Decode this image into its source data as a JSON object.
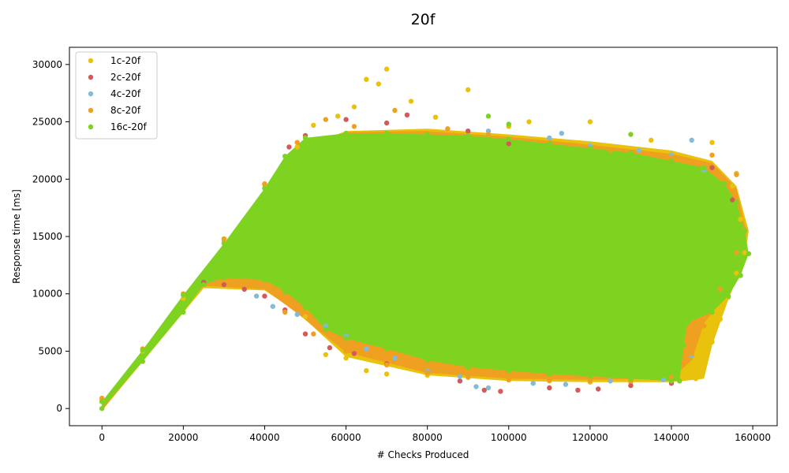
{
  "chart_data": {
    "type": "scatter",
    "title": "20f",
    "xlabel": "# Checks Produced",
    "ylabel": "Response time [ms]",
    "xlim": [
      -8000,
      166000
    ],
    "ylim": [
      -1500,
      31500
    ],
    "xticks": [
      0,
      20000,
      40000,
      60000,
      80000,
      100000,
      120000,
      140000,
      160000
    ],
    "yticks": [
      0,
      5000,
      10000,
      15000,
      20000,
      25000,
      30000
    ],
    "xtick_labels": [
      "0",
      "20000",
      "40000",
      "60000",
      "80000",
      "100000",
      "120000",
      "140000",
      "160000"
    ],
    "ytick_labels": [
      "0",
      "5000",
      "10000",
      "15000",
      "20000",
      "25000",
      "30000"
    ],
    "grid": false,
    "legend_position": "top-left",
    "series": [
      {
        "name": "1c-20f",
        "color": "#e8c20c",
        "points": [
          [
            0,
            700
          ],
          [
            10000,
            5000
          ],
          [
            20000,
            9600
          ],
          [
            30000,
            14600
          ],
          [
            40000,
            19500
          ],
          [
            48000,
            22800
          ],
          [
            52000,
            24700
          ],
          [
            58000,
            25500
          ],
          [
            62000,
            26300
          ],
          [
            65000,
            28700
          ],
          [
            68000,
            28300
          ],
          [
            70000,
            29600
          ],
          [
            76000,
            26800
          ],
          [
            82000,
            25400
          ],
          [
            90000,
            27800
          ],
          [
            100000,
            24600
          ],
          [
            105000,
            25000
          ],
          [
            120000,
            25000
          ],
          [
            135000,
            23400
          ],
          [
            150000,
            23200
          ],
          [
            156000,
            20500
          ],
          [
            50000,
            8000
          ],
          [
            55000,
            4700
          ],
          [
            60000,
            4400
          ],
          [
            65000,
            3300
          ],
          [
            70000,
            3000
          ],
          [
            80000,
            2900
          ],
          [
            90000,
            2700
          ],
          [
            100000,
            2500
          ],
          [
            110000,
            2400
          ],
          [
            120000,
            2300
          ],
          [
            130000,
            2300
          ],
          [
            140000,
            2300
          ],
          [
            146000,
            2600
          ],
          [
            148000,
            4000
          ],
          [
            150000,
            5800
          ],
          [
            152000,
            7800
          ],
          [
            154000,
            9700
          ],
          [
            156000,
            11800
          ],
          [
            158000,
            13600
          ],
          [
            157000,
            16500
          ],
          [
            155000,
            19400
          ]
        ]
      },
      {
        "name": "2c-20f",
        "color": "#d45a5a",
        "points": [
          [
            25000,
            11000
          ],
          [
            30000,
            10800
          ],
          [
            35000,
            10400
          ],
          [
            40000,
            9800
          ],
          [
            45000,
            8600
          ],
          [
            50000,
            6500
          ],
          [
            56000,
            5300
          ],
          [
            62000,
            4800
          ],
          [
            70000,
            3900
          ],
          [
            80000,
            3200
          ],
          [
            88000,
            2400
          ],
          [
            94000,
            1600
          ],
          [
            98000,
            1500
          ],
          [
            110000,
            1800
          ],
          [
            117000,
            1600
          ],
          [
            122000,
            1700
          ],
          [
            130000,
            2000
          ],
          [
            140000,
            2200
          ],
          [
            46000,
            22800
          ],
          [
            50000,
            23800
          ],
          [
            60000,
            25200
          ],
          [
            70000,
            24900
          ],
          [
            75000,
            25600
          ],
          [
            90000,
            24200
          ],
          [
            100000,
            23100
          ],
          [
            120000,
            22800
          ],
          [
            140000,
            21600
          ],
          [
            150000,
            21000
          ],
          [
            155000,
            18200
          ]
        ]
      },
      {
        "name": "4c-20f",
        "color": "#82bcd6",
        "points": [
          [
            38000,
            9800
          ],
          [
            42000,
            8900
          ],
          [
            48000,
            8200
          ],
          [
            55000,
            7200
          ],
          [
            60000,
            6300
          ],
          [
            65000,
            5200
          ],
          [
            72000,
            4400
          ],
          [
            80000,
            3300
          ],
          [
            88000,
            2800
          ],
          [
            92000,
            1900
          ],
          [
            95000,
            1800
          ],
          [
            106000,
            2200
          ],
          [
            114000,
            2100
          ],
          [
            125000,
            2400
          ],
          [
            138000,
            2500
          ],
          [
            145000,
            4600
          ],
          [
            95000,
            24200
          ],
          [
            110000,
            23600
          ],
          [
            113000,
            24000
          ],
          [
            120000,
            22900
          ],
          [
            132000,
            22500
          ],
          [
            140000,
            22100
          ],
          [
            145000,
            23400
          ],
          [
            148000,
            20800
          ]
        ]
      },
      {
        "name": "8c-20f",
        "color": "#f0a020",
        "points": [
          [
            0,
            900
          ],
          [
            10000,
            5200
          ],
          [
            20000,
            10000
          ],
          [
            30000,
            14800
          ],
          [
            40000,
            19600
          ],
          [
            48000,
            23200
          ],
          [
            55000,
            25200
          ],
          [
            62000,
            24600
          ],
          [
            72000,
            26000
          ],
          [
            85000,
            24400
          ],
          [
            95000,
            23900
          ],
          [
            110000,
            23200
          ],
          [
            125000,
            22500
          ],
          [
            140000,
            21900
          ],
          [
            150000,
            22100
          ],
          [
            156000,
            20400
          ],
          [
            45000,
            8400
          ],
          [
            52000,
            6500
          ],
          [
            60000,
            5000
          ],
          [
            70000,
            3800
          ],
          [
            80000,
            3100
          ],
          [
            90000,
            2800
          ],
          [
            100000,
            2500
          ],
          [
            110000,
            2500
          ],
          [
            120000,
            2400
          ],
          [
            130000,
            2400
          ],
          [
            140000,
            2700
          ],
          [
            145000,
            4800
          ],
          [
            148000,
            7200
          ],
          [
            152000,
            10400
          ],
          [
            156000,
            13600
          ],
          [
            158000,
            15600
          ]
        ]
      },
      {
        "name": "16c-20f",
        "color": "#7ed321",
        "points": [
          [
            0,
            0
          ],
          [
            10000,
            4100
          ],
          [
            20000,
            8400
          ],
          [
            25000,
            10800
          ],
          [
            30000,
            11400
          ],
          [
            40000,
            11200
          ],
          [
            45000,
            10200
          ],
          [
            50000,
            8800
          ],
          [
            55000,
            6900
          ],
          [
            60000,
            6100
          ],
          [
            70000,
            5200
          ],
          [
            80000,
            4200
          ],
          [
            90000,
            3600
          ],
          [
            100000,
            3300
          ],
          [
            110000,
            3000
          ],
          [
            120000,
            2800
          ],
          [
            130000,
            2600
          ],
          [
            140000,
            2400
          ],
          [
            142000,
            2400
          ],
          [
            143000,
            5500
          ],
          [
            144000,
            7500
          ],
          [
            150000,
            8400
          ],
          [
            154000,
            9800
          ],
          [
            157000,
            11600
          ],
          [
            159000,
            13500
          ],
          [
            158000,
            15500
          ],
          [
            156000,
            18000
          ],
          [
            153000,
            19600
          ],
          [
            148000,
            21000
          ],
          [
            140000,
            21600
          ],
          [
            130000,
            22300
          ],
          [
            120000,
            22700
          ],
          [
            110000,
            23100
          ],
          [
            100000,
            23500
          ],
          [
            90000,
            23800
          ],
          [
            80000,
            23900
          ],
          [
            70000,
            24000
          ],
          [
            60000,
            24000
          ],
          [
            50000,
            23600
          ],
          [
            45000,
            22000
          ],
          [
            40000,
            19200
          ],
          [
            30000,
            14400
          ],
          [
            20000,
            9900
          ],
          [
            10000,
            5100
          ],
          [
            0,
            600
          ],
          [
            95000,
            25500
          ],
          [
            100000,
            24800
          ],
          [
            130000,
            23900
          ]
        ]
      }
    ]
  }
}
